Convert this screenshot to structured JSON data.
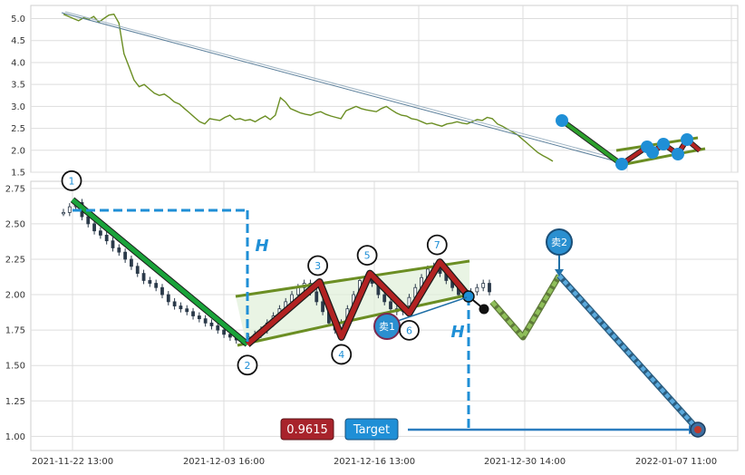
{
  "chart_data": [
    {
      "type": "line",
      "panel": "overview",
      "ylim": [
        1.5,
        5.3
      ],
      "yticks": [
        "1.5",
        "2.0",
        "2.5",
        "3.0",
        "3.5",
        "4.0",
        "4.5",
        "5.0"
      ],
      "grid": true,
      "colors": {
        "price": "#6b8e23",
        "trend_down": "#2ca02c",
        "bubble": "#1f8fd6",
        "zigzag": "#b22222"
      },
      "series": [
        {
          "values": [
            5.1,
            5.05,
            5.0,
            4.95,
            5.02,
            4.98,
            5.05,
            4.92,
            5.0,
            5.08,
            5.1,
            4.9,
            4.2,
            3.9,
            3.6,
            3.45,
            3.5,
            3.4,
            3.3,
            3.25,
            3.28,
            3.2,
            3.1,
            3.05,
            2.95,
            2.85,
            2.75,
            2.65,
            2.6,
            2.72,
            2.7,
            2.68,
            2.75,
            2.8,
            2.7,
            2.72,
            2.68,
            2.7,
            2.65,
            2.72,
            2.78,
            2.7,
            2.8,
            3.2,
            3.1,
            2.95,
            2.9,
            2.85,
            2.82,
            2.8,
            2.85,
            2.88,
            2.82,
            2.78,
            2.75,
            2.72,
            2.9,
            2.95,
            3.0,
            2.95,
            2.92,
            2.9,
            2.88,
            2.95,
            3.0,
            2.92,
            2.85,
            2.8,
            2.78,
            2.72,
            2.7,
            2.65,
            2.6,
            2.62,
            2.58,
            2.55,
            2.6,
            2.62,
            2.65,
            2.62,
            2.6,
            2.65,
            2.7,
            2.68,
            2.75,
            2.72,
            2.6,
            2.55,
            2.48,
            2.42,
            2.35,
            2.25,
            2.15,
            2.05,
            1.95,
            1.88,
            1.82,
            1.75
          ]
        }
      ]
    },
    {
      "type": "line",
      "panel": "detail",
      "ylim": [
        0.9,
        2.8
      ],
      "yticks": [
        "1.00",
        "1.25",
        "1.50",
        "1.75",
        "2.00",
        "2.25",
        "2.50",
        "2.75"
      ],
      "xticks": [
        "2021-11-22 13:00",
        "2021-12-03 16:00",
        "2021-12-16 13:00",
        "2021-12-30 14:00",
        "2022-01-07 11:00"
      ],
      "grid": true,
      "colors": {
        "down_leg": "#1aa33a",
        "zigzag": "#b22222",
        "channel": "#6b8e23",
        "measure": "#1f8fd6",
        "projection": "#8fbf5a",
        "target_box": "#1f8fd6",
        "price_box": "#a8232b"
      },
      "points": [
        {
          "id": "1",
          "x": 0.0,
          "y": 2.67
        },
        {
          "id": "2",
          "x": 8.0,
          "y": 1.65
        },
        {
          "id": "3",
          "x": 11.3,
          "y": 2.09
        },
        {
          "id": "4",
          "x": 12.3,
          "y": 1.7
        },
        {
          "id": "5",
          "x": 13.6,
          "y": 2.15
        },
        {
          "id": "6",
          "x": 15.4,
          "y": 1.87
        },
        {
          "id": "7",
          "x": 16.8,
          "y": 2.23
        }
      ],
      "labels": {
        "height": "H",
        "sell1": "卖1",
        "sell2": "卖2",
        "target": "Target",
        "target_value": "0.9615"
      },
      "candles": [
        2.58,
        2.62,
        2.65,
        2.55,
        2.5,
        2.45,
        2.42,
        2.38,
        2.33,
        2.3,
        2.25,
        2.2,
        2.15,
        2.1,
        2.08,
        2.05,
        2.0,
        1.95,
        1.92,
        1.9,
        1.88,
        1.85,
        1.83,
        1.8,
        1.78,
        1.75,
        1.72,
        1.7,
        1.68,
        1.67,
        1.7,
        1.72,
        1.75,
        1.8,
        1.85,
        1.9,
        1.95,
        2.0,
        2.05,
        2.08,
        2.02,
        1.95,
        1.88,
        1.8,
        1.75,
        1.8,
        1.9,
        2.0,
        2.1,
        2.12,
        2.08,
        2.0,
        1.95,
        1.9,
        1.88,
        1.92,
        1.98,
        2.05,
        2.12,
        2.18,
        2.2,
        2.15,
        2.1,
        2.05,
        2.0,
        1.98,
        2.02,
        2.05,
        2.08,
        2.02
      ]
    }
  ]
}
